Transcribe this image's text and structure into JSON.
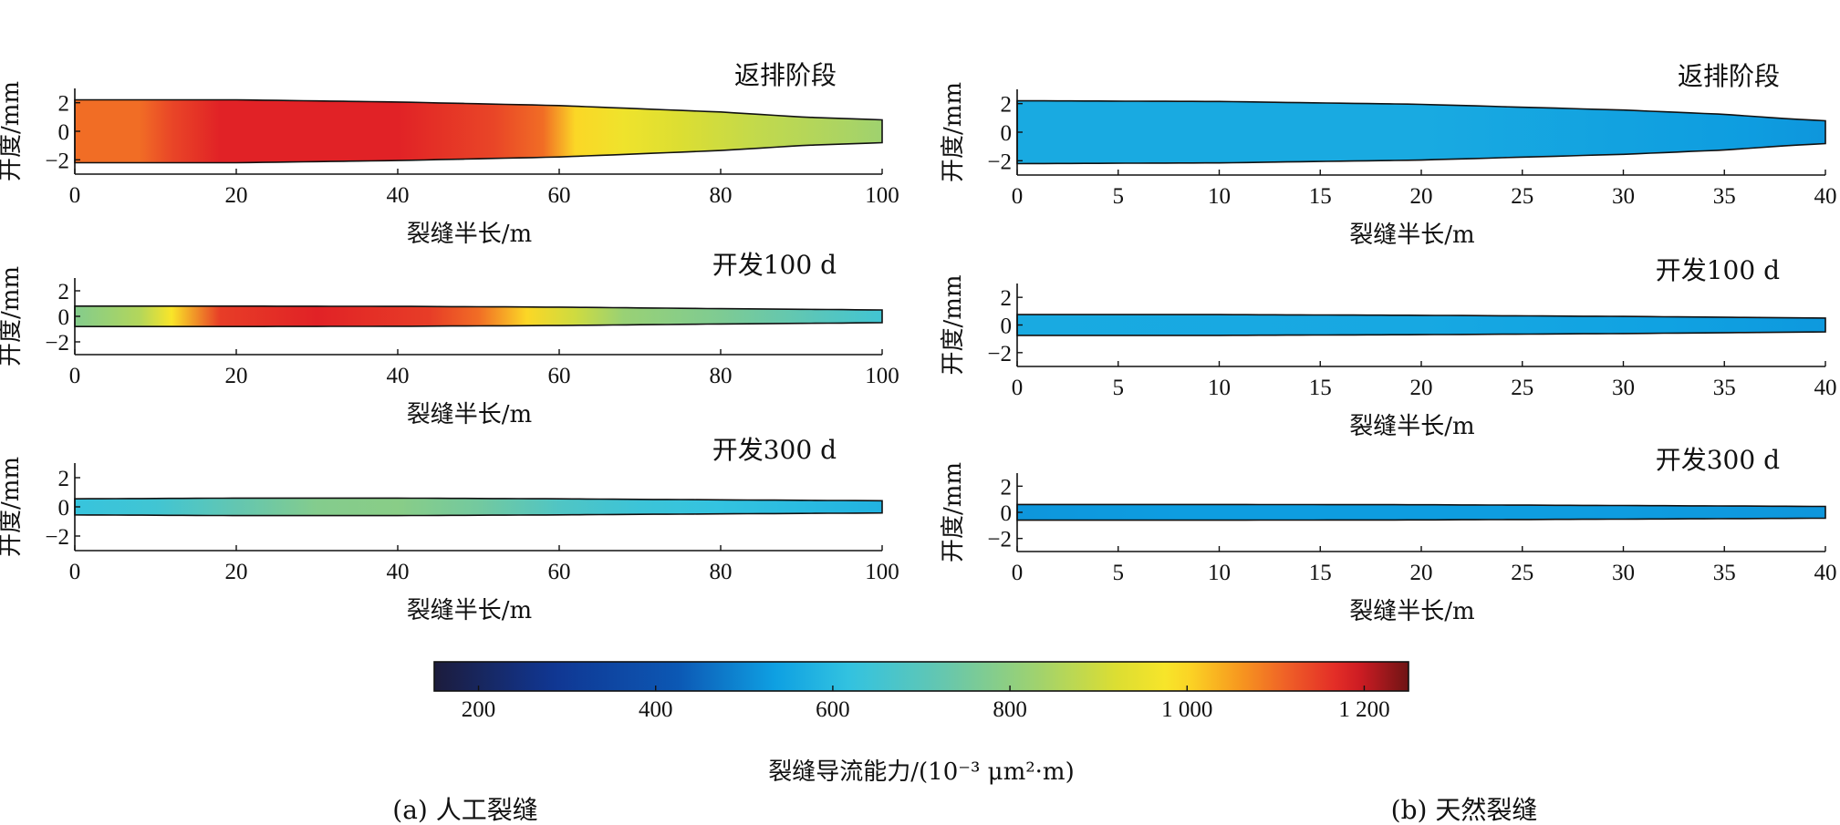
{
  "panels": [
    {
      "caption": "(a) 人工裂缝"
    },
    {
      "caption": "(b) 天然裂缝"
    }
  ],
  "colorbar": {
    "label": "裂缝导流能力/(10⁻³ μm²·m)",
    "range": [
      150,
      1250
    ],
    "ticks": [
      200,
      400,
      600,
      800,
      1000,
      1200
    ],
    "tick_labels": [
      "200",
      "400",
      "600",
      "800",
      "1 000",
      "1 200"
    ]
  },
  "chart_data": [
    {
      "type": "heatmap",
      "panel": "(a) 人工裂缝",
      "title": "返排阶段",
      "xlabel": "裂缝半长/m",
      "ylabel": "开度/mm",
      "xlim": [
        0,
        100
      ],
      "ylim": [
        -3,
        3
      ],
      "xticks": [
        0,
        20,
        40,
        60,
        80,
        100
      ],
      "yticks": [
        2,
        0,
        -2
      ],
      "aperture": {
        "x": [
          0,
          20,
          40,
          60,
          80,
          90,
          100
        ],
        "half_width": [
          2.2,
          2.2,
          2.05,
          1.8,
          1.35,
          1.0,
          0.8
        ]
      },
      "conductivity": {
        "x": [
          0,
          8,
          12,
          18,
          40,
          52,
          58,
          62,
          68,
          75,
          85,
          95,
          100
        ],
        "value": [
          1100,
          1100,
          1140,
          1180,
          1180,
          1140,
          1100,
          1000,
          960,
          920,
          880,
          850,
          830
        ]
      }
    },
    {
      "type": "heatmap",
      "panel": "(a) 人工裂缝",
      "title": "开发100 d",
      "xlabel": "裂缝半长/m",
      "ylabel": "开度/mm",
      "xlim": [
        0,
        100
      ],
      "ylim": [
        -3,
        3
      ],
      "xticks": [
        0,
        20,
        40,
        60,
        80,
        100
      ],
      "yticks": [
        2,
        0,
        -2
      ],
      "aperture": {
        "x": [
          0,
          20,
          40,
          60,
          80,
          90,
          100
        ],
        "half_width": [
          0.8,
          0.8,
          0.78,
          0.72,
          0.6,
          0.55,
          0.5
        ]
      },
      "conductivity": {
        "x": [
          0,
          4,
          8,
          12,
          18,
          30,
          44,
          50,
          56,
          62,
          68,
          80,
          92,
          100
        ],
        "value": [
          780,
          820,
          860,
          980,
          1150,
          1180,
          1150,
          1100,
          1000,
          900,
          820,
          770,
          700,
          650
        ]
      }
    },
    {
      "type": "heatmap",
      "panel": "(a) 人工裂缝",
      "title": "开发300 d",
      "xlabel": "裂缝半长/m",
      "ylabel": "开度/mm",
      "xlim": [
        0,
        100
      ],
      "ylim": [
        -3,
        3
      ],
      "xticks": [
        0,
        20,
        40,
        60,
        80,
        100
      ],
      "yticks": [
        2,
        0,
        -2
      ],
      "aperture": {
        "x": [
          0,
          20,
          40,
          60,
          80,
          100
        ],
        "half_width": [
          0.55,
          0.6,
          0.6,
          0.55,
          0.48,
          0.42
        ]
      },
      "conductivity": {
        "x": [
          0,
          10,
          20,
          30,
          40,
          50,
          60,
          70,
          80,
          90,
          100
        ],
        "value": [
          630,
          650,
          720,
          780,
          790,
          750,
          680,
          640,
          620,
          600,
          580
        ]
      }
    },
    {
      "type": "heatmap",
      "panel": "(b) 天然裂缝",
      "title": "返排阶段",
      "xlabel": "裂缝半长/m",
      "ylabel": "开度/mm",
      "xlim": [
        0,
        40
      ],
      "ylim": [
        -3,
        3
      ],
      "xticks": [
        0,
        5,
        10,
        15,
        20,
        25,
        30,
        35,
        40
      ],
      "yticks": [
        2,
        0,
        -2
      ],
      "aperture": {
        "x": [
          0,
          10,
          20,
          30,
          35,
          38,
          40
        ],
        "half_width": [
          2.2,
          2.15,
          1.95,
          1.55,
          1.25,
          0.95,
          0.8
        ]
      },
      "conductivity": {
        "x": [
          0,
          20,
          36,
          40
        ],
        "value": [
          560,
          560,
          530,
          520
        ]
      }
    },
    {
      "type": "heatmap",
      "panel": "(b) 天然裂缝",
      "title": "开发100 d",
      "xlabel": "裂缝半长/m",
      "ylabel": "开度/mm",
      "xlim": [
        0,
        40
      ],
      "ylim": [
        -3,
        3
      ],
      "xticks": [
        0,
        5,
        10,
        15,
        20,
        25,
        30,
        35,
        40
      ],
      "yticks": [
        2,
        0,
        -2
      ],
      "aperture": {
        "x": [
          0,
          10,
          20,
          30,
          40
        ],
        "half_width": [
          0.75,
          0.75,
          0.7,
          0.62,
          0.5
        ]
      },
      "conductivity": {
        "x": [
          0,
          20,
          32,
          40
        ],
        "value": [
          560,
          555,
          540,
          525
        ]
      }
    },
    {
      "type": "heatmap",
      "panel": "(b) 天然裂缝",
      "title": "开发300 d",
      "xlabel": "裂缝半长/m",
      "ylabel": "开度/mm",
      "xlim": [
        0,
        40
      ],
      "ylim": [
        -3,
        3
      ],
      "xticks": [
        0,
        5,
        10,
        15,
        20,
        25,
        30,
        35,
        40
      ],
      "yticks": [
        2,
        0,
        -2
      ],
      "aperture": {
        "x": [
          0,
          10,
          20,
          30,
          40
        ],
        "half_width": [
          0.6,
          0.6,
          0.58,
          0.52,
          0.45
        ]
      },
      "conductivity": {
        "x": [
          0,
          8,
          28,
          40
        ],
        "value": [
          520,
          530,
          530,
          520
        ]
      }
    }
  ]
}
